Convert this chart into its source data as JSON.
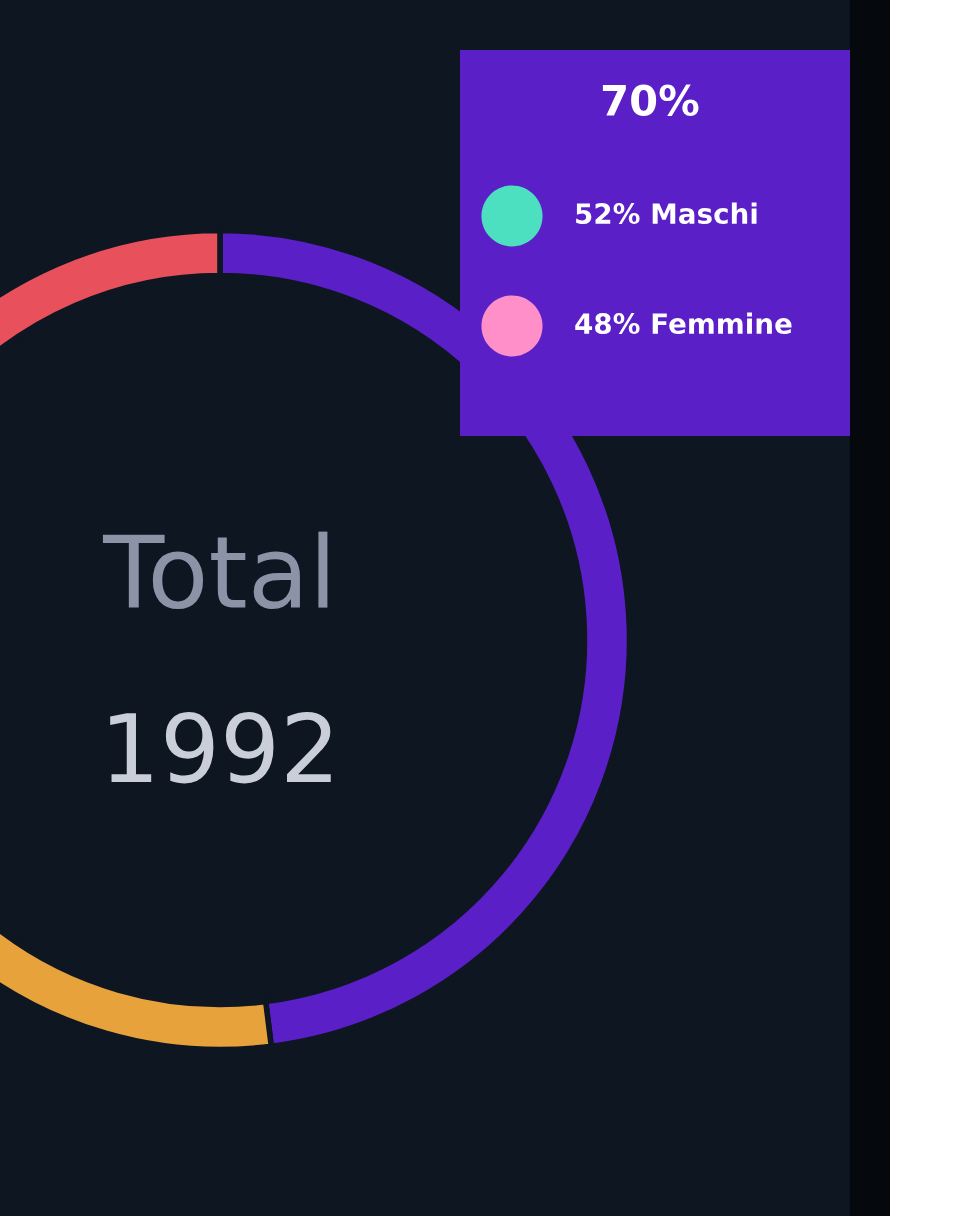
{
  "chart_data": {
    "type": "donut",
    "categories": [
      null,
      null,
      null
    ],
    "values": [
      48,
      26,
      26
    ],
    "colors": [
      "#5b1fc8",
      "#e8a23c",
      "#e8505b"
    ],
    "legend": false,
    "annotations": [
      "Total",
      "1992",
      "70%",
      "52% Maschi",
      "48% Femmine"
    ]
  }
}
